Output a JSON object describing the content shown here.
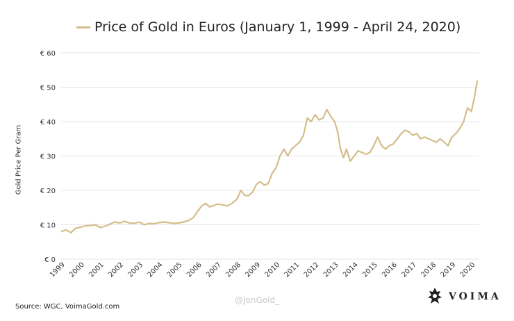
{
  "chart_data": {
    "type": "line",
    "title": "Price of Gold in Euros (January 1, 1999 - April 24, 2020)",
    "xlabel": "",
    "ylabel": "Gold Price Per Gram",
    "ylim": [
      0,
      60
    ],
    "xlim": [
      1999.0,
      2020.4
    ],
    "y_ticks": [
      0,
      10,
      20,
      30,
      40,
      50,
      60
    ],
    "y_tick_labels": [
      "€ 0",
      "€ 10",
      "€ 20",
      "€ 30",
      "€ 40",
      "€ 50",
      "€ 60"
    ],
    "x_tick_labels": [
      "1999",
      "2000",
      "2001",
      "2002",
      "2003",
      "2004",
      "2005",
      "2006",
      "2007",
      "2008",
      "2009",
      "2010",
      "2011",
      "2012",
      "2013",
      "2014",
      "2015",
      "2016",
      "2017",
      "2018",
      "2019",
      "2020"
    ],
    "grid": true,
    "legend": "top",
    "series": [
      {
        "name": "Price of Gold in Euros (January 1, 1999 - April 24, 2020)",
        "color": "#d4bd8a",
        "x": [
          1999.0,
          1999.25,
          1999.5,
          1999.75,
          2000.0,
          2000.25,
          2000.5,
          2000.75,
          2001.0,
          2001.25,
          2001.5,
          2001.75,
          2002.0,
          2002.25,
          2002.5,
          2002.75,
          2003.0,
          2003.25,
          2003.5,
          2003.75,
          2004.0,
          2004.25,
          2004.5,
          2004.75,
          2005.0,
          2005.25,
          2005.5,
          2005.75,
          2006.0,
          2006.2,
          2006.4,
          2006.6,
          2006.8,
          2007.0,
          2007.25,
          2007.5,
          2007.75,
          2008.0,
          2008.2,
          2008.4,
          2008.6,
          2008.8,
          2009.0,
          2009.2,
          2009.4,
          2009.6,
          2009.8,
          2010.0,
          2010.2,
          2010.4,
          2010.6,
          2010.8,
          2011.0,
          2011.2,
          2011.4,
          2011.6,
          2011.8,
          2012.0,
          2012.2,
          2012.4,
          2012.6,
          2012.8,
          2013.0,
          2013.15,
          2013.3,
          2013.45,
          2013.6,
          2013.8,
          2014.0,
          2014.2,
          2014.4,
          2014.6,
          2014.8,
          2015.0,
          2015.2,
          2015.4,
          2015.6,
          2015.8,
          2016.0,
          2016.2,
          2016.4,
          2016.6,
          2016.8,
          2017.0,
          2017.2,
          2017.4,
          2017.6,
          2017.8,
          2018.0,
          2018.2,
          2018.4,
          2018.6,
          2018.8,
          2019.0,
          2019.2,
          2019.4,
          2019.6,
          2019.8,
          2020.0,
          2020.15,
          2020.3
        ],
        "values": [
          8.0,
          8.5,
          7.7,
          9.0,
          9.3,
          9.7,
          9.8,
          10.0,
          9.2,
          9.6,
          10.2,
          10.8,
          10.5,
          11.0,
          10.5,
          10.4,
          10.8,
          10.0,
          10.4,
          10.3,
          10.6,
          10.8,
          10.6,
          10.4,
          10.5,
          10.8,
          11.2,
          12.0,
          14.0,
          15.5,
          16.2,
          15.2,
          15.6,
          16.0,
          15.8,
          15.5,
          16.2,
          17.5,
          20.0,
          18.5,
          18.5,
          19.5,
          21.8,
          22.5,
          21.5,
          22.0,
          25.0,
          26.5,
          30.0,
          32.0,
          30.0,
          32.0,
          33.0,
          34.0,
          36.0,
          41.0,
          40.0,
          42.0,
          40.5,
          41.0,
          43.5,
          41.5,
          40.0,
          37.0,
          32.0,
          29.5,
          32.0,
          28.5,
          30.0,
          31.5,
          31.0,
          30.5,
          31.0,
          33.0,
          35.5,
          33.0,
          32.0,
          33.0,
          33.5,
          35.0,
          36.5,
          37.5,
          37.0,
          36.0,
          36.5,
          35.0,
          35.5,
          35.0,
          34.5,
          34.0,
          35.0,
          34.0,
          33.0,
          35.5,
          36.5,
          38.0,
          40.0,
          44.0,
          43.0,
          47.0,
          52.0
        ]
      }
    ]
  },
  "footer": {
    "source": "Source: WGC, VoimaGold.com",
    "watermark": "@JonGold_",
    "brand": "VOIMA"
  }
}
